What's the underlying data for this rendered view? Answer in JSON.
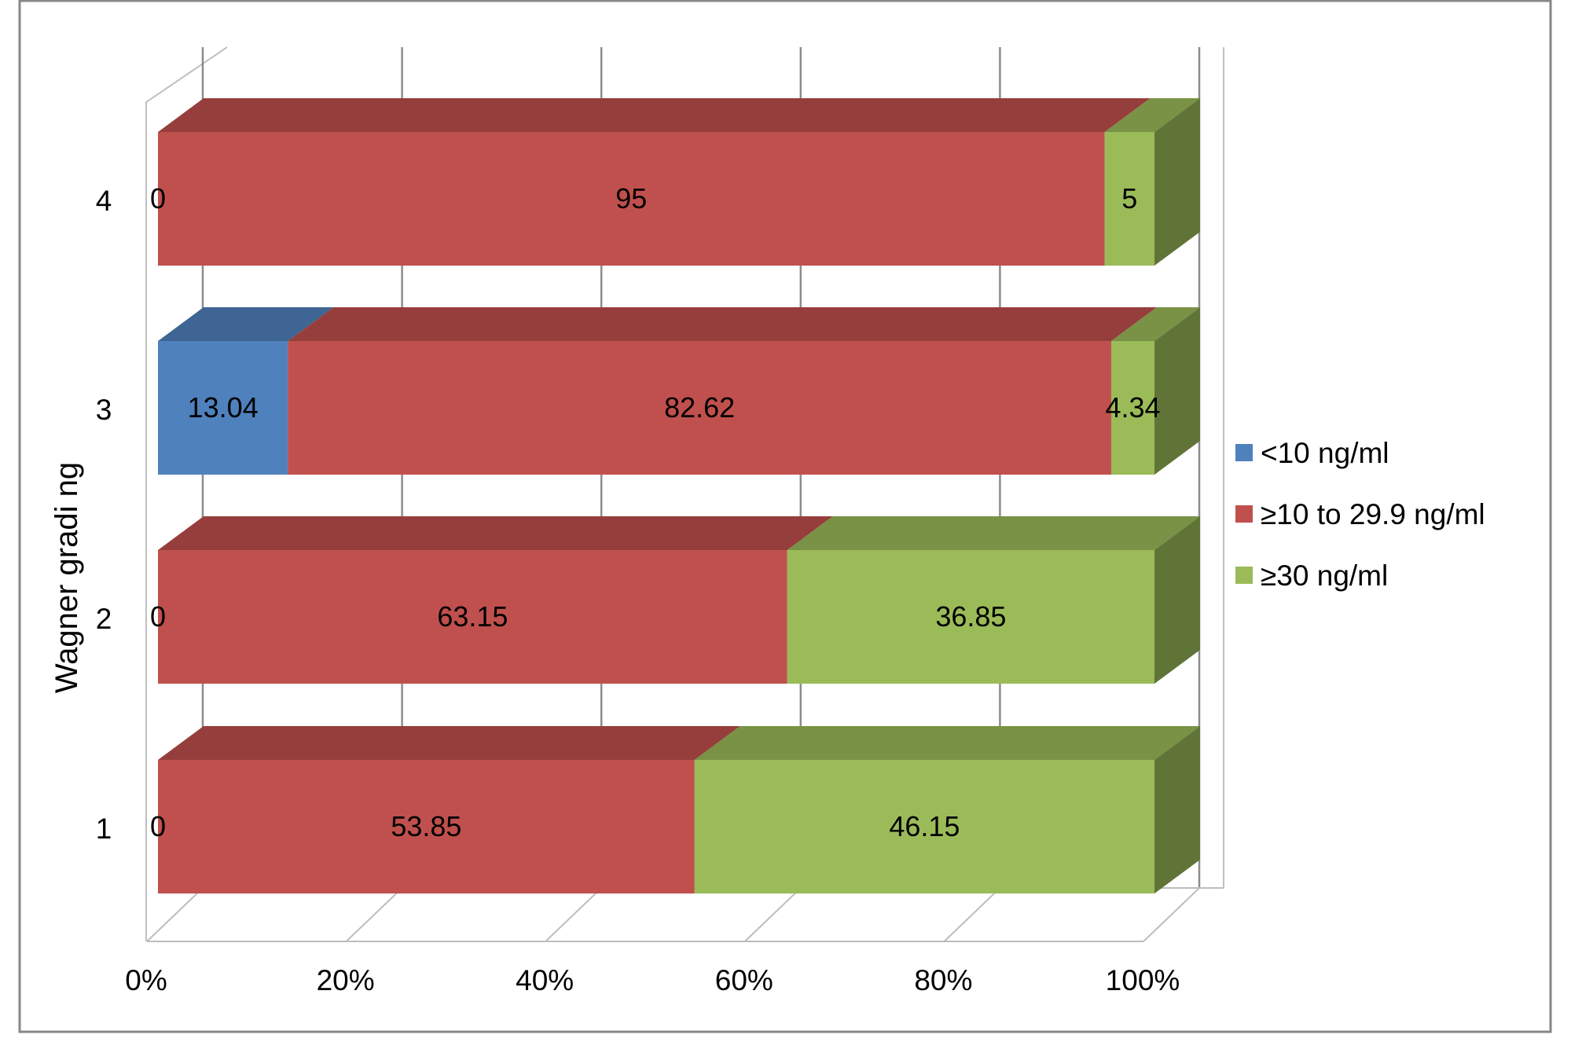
{
  "chart_data": {
    "type": "bar",
    "orientation": "horizontal",
    "stacked": "percent",
    "three_d": true,
    "title": "",
    "xlabel": "",
    "ylabel": "Wagner gradi ng",
    "categories": [
      "1",
      "2",
      "3",
      "4"
    ],
    "x_ticks": [
      "0%",
      "20%",
      "40%",
      "60%",
      "80%",
      "100%"
    ],
    "xlim": [
      0,
      100
    ],
    "grid": true,
    "legend_position": "right",
    "series": [
      {
        "name": "<10 ng/ml",
        "color": "#4F81BD",
        "values": [
          0,
          0,
          13.04,
          0
        ],
        "labels": [
          "0",
          "0",
          "13.04",
          "0"
        ]
      },
      {
        "name": "≥10 to 29.9 ng/ml",
        "color": "#C0504D",
        "values": [
          53.85,
          63.15,
          82.62,
          95
        ],
        "labels": [
          "53.85",
          "63.15",
          "82.62",
          "95"
        ]
      },
      {
        "name": "≥30 ng/ml",
        "color": "#9BBB59",
        "values": [
          46.15,
          36.85,
          4.34,
          5
        ],
        "labels": [
          "46.15",
          "36.85",
          "4.34",
          "5"
        ]
      }
    ]
  }
}
